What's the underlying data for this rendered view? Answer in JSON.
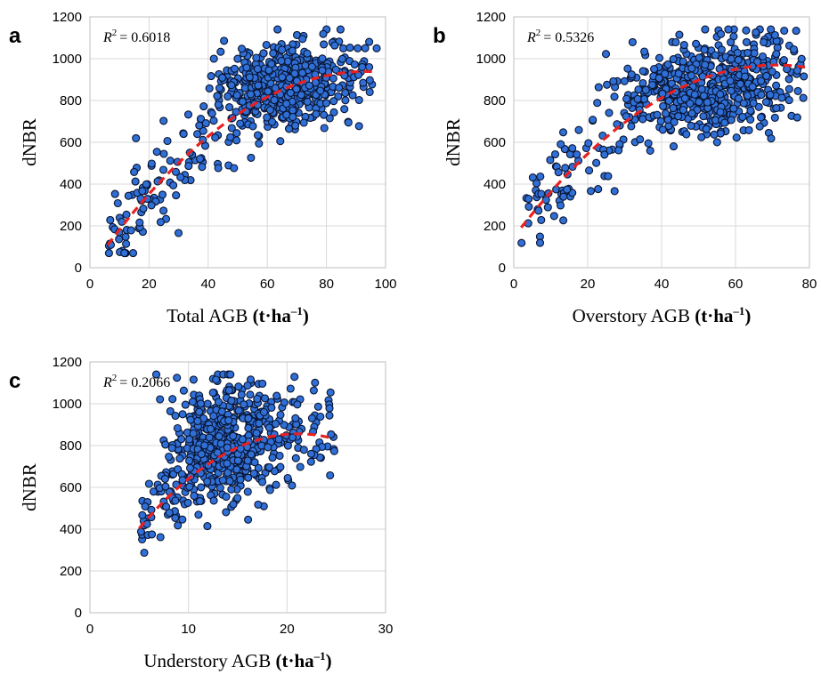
{
  "chart_data": [
    {
      "type": "scatter",
      "panel": "a",
      "r2_text": "= 0.6018",
      "r2_value": 0.6018,
      "xlabel_prefix": "Total AGB ",
      "ylabel": "dNBR",
      "unit_main": "t·ha",
      "unit_sup": "–1",
      "xlim": [
        0,
        100
      ],
      "ylim": [
        0,
        1200
      ],
      "xticks": [
        "0",
        "20",
        "40",
        "60",
        "80",
        "100"
      ],
      "yticks": [
        "0",
        "200",
        "400",
        "600",
        "800",
        "1000",
        "1200"
      ],
      "x_range": [
        6,
        97
      ],
      "cluster": {
        "center": [
          65,
          880
        ],
        "spread": [
          15,
          140
        ],
        "count": 640
      },
      "fit": {
        "x_start": 6,
        "x_end": 96,
        "coef": [
          -0.1086,
          20.3,
          -10
        ]
      },
      "grid": "horizontal and vertical"
    },
    {
      "type": "scatter",
      "panel": "b",
      "r2_text": "= 0.5326",
      "r2_value": 0.5326,
      "xlabel_prefix": "Overstory AGB ",
      "ylabel": "dNBR",
      "unit_main": "t·ha",
      "unit_sup": "–1",
      "xlim": [
        0,
        80
      ],
      "ylim": [
        0,
        1200
      ],
      "xticks": [
        "0",
        "20",
        "40",
        "60",
        "80"
      ],
      "yticks": [
        "0",
        "200",
        "400",
        "600",
        "800",
        "1000",
        "1200"
      ],
      "x_range": [
        2,
        80
      ],
      "cluster": {
        "center": [
          52,
          850
        ],
        "spread": [
          14,
          150
        ],
        "count": 640
      },
      "fit": {
        "x_start": 2,
        "x_end": 79,
        "coef": [
          -0.1634,
          23.2,
          146
        ]
      },
      "grid": "horizontal and vertical"
    },
    {
      "type": "scatter",
      "panel": "c",
      "r2_text": "= 0.2066",
      "r2_value": 0.2066,
      "xlabel_prefix": "Understory AGB ",
      "ylabel": "dNBR",
      "unit_main": "t·ha",
      "unit_sup": "–1",
      "xlim": [
        0,
        30
      ],
      "ylim": [
        0,
        1200
      ],
      "xticks": [
        "0",
        "10",
        "20",
        "30"
      ],
      "yticks": [
        "0",
        "200",
        "400",
        "600",
        "800",
        "1000",
        "1200"
      ],
      "x_range": [
        5,
        25
      ],
      "cluster": {
        "center": [
          13.5,
          820
        ],
        "spread": [
          3.6,
          200
        ],
        "count": 640
      },
      "fit": {
        "x_start": 5,
        "x_end": 24.6,
        "coef": [
          -1.74,
          73.5,
          80
        ]
      },
      "grid": "horizontal and vertical"
    }
  ]
}
